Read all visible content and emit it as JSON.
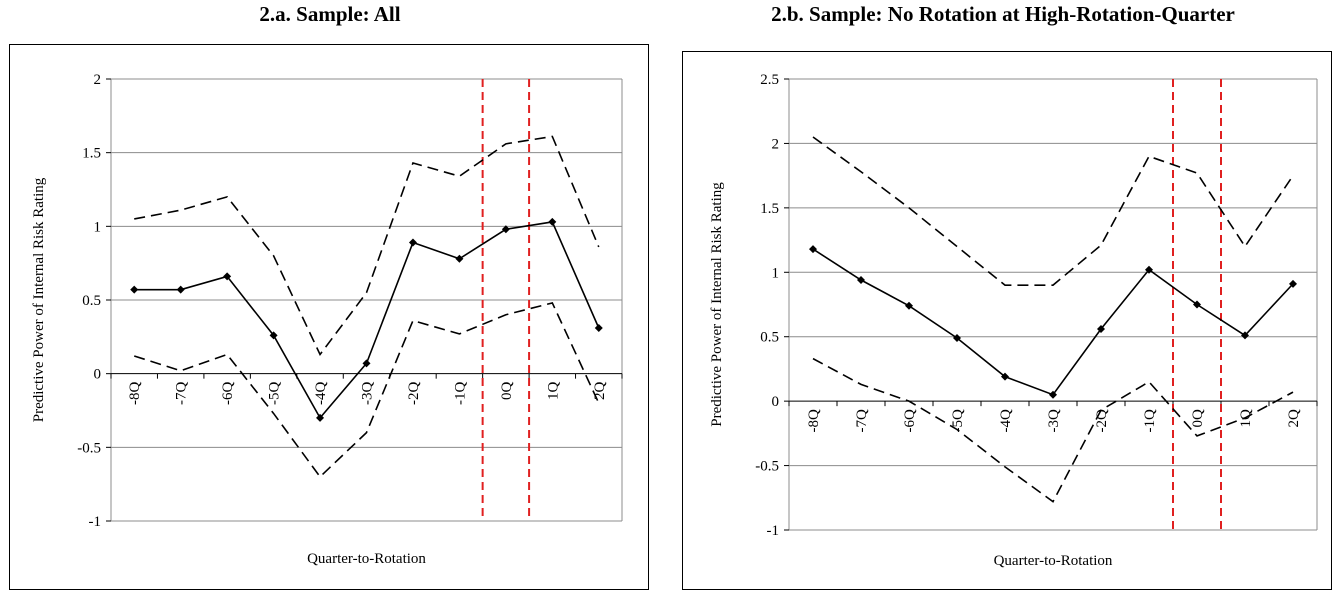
{
  "panels": [
    {
      "title": "2.a. Sample: All",
      "chart_data": {
        "type": "line",
        "categories": [
          "-8Q",
          "-7Q",
          "-6Q",
          "-5Q",
          "-4Q",
          "-3Q",
          "-2Q",
          "-1Q",
          "0Q",
          "1Q",
          "2Q"
        ],
        "series": [
          {
            "values": [
              0.57,
              0.57,
              0.66,
              0.26,
              -0.3,
              0.07,
              0.89,
              0.78,
              0.98,
              1.03,
              0.31
            ],
            "style": "solid-markers"
          },
          {
            "values": [
              1.05,
              1.11,
              1.2,
              0.8,
              0.13,
              0.55,
              1.43,
              1.34,
              1.56,
              1.61,
              0.86
            ],
            "style": "dashed"
          },
          {
            "values": [
              0.12,
              0.02,
              0.13,
              -0.27,
              -0.7,
              -0.4,
              0.36,
              0.27,
              0.4,
              0.48,
              -0.2
            ],
            "style": "dashed"
          }
        ],
        "xlabel": "Quarter-to-Rotation",
        "ylabel": "Predictive Power of Internal Risk Rating",
        "ylim": [
          -1,
          2
        ],
        "yticks": [
          "2",
          "1.5",
          "1",
          "0.5",
          "0",
          "-0.5",
          "-1"
        ],
        "ytick_values": [
          2,
          1.5,
          1,
          0.5,
          0,
          -0.5,
          -1
        ],
        "vlines_between": [
          [
            7,
            8
          ],
          [
            8,
            9
          ]
        ],
        "grid": true,
        "line_color": "#000000",
        "vline_color": "#e02020"
      }
    },
    {
      "title": "2.b. Sample: No Rotation at High-Rotation-Quarter",
      "chart_data": {
        "type": "line",
        "categories": [
          "-8Q",
          "-7Q",
          "-6Q",
          "-5Q",
          "-4Q",
          "-3Q",
          "-2Q",
          "-1Q",
          "0Q",
          "1Q",
          "2Q"
        ],
        "series": [
          {
            "values": [
              1.18,
              0.94,
              0.74,
              0.49,
              0.19,
              0.05,
              0.56,
              1.02,
              0.75,
              0.51,
              0.91
            ],
            "style": "solid-markers"
          },
          {
            "values": [
              2.05,
              1.78,
              1.5,
              1.2,
              0.9,
              0.9,
              1.21,
              1.9,
              1.77,
              1.2,
              1.75
            ],
            "style": "dashed"
          },
          {
            "values": [
              0.33,
              0.13,
              0.0,
              -0.22,
              -0.51,
              -0.78,
              -0.07,
              0.15,
              -0.27,
              -0.13,
              0.07
            ],
            "style": "dashed"
          }
        ],
        "xlabel": "Quarter-to-Rotation",
        "ylabel": "Predictive Power of Internal Risk Rating",
        "ylim": [
          -1,
          2.5
        ],
        "yticks": [
          "2.5",
          "2",
          "1.5",
          "1",
          "0.5",
          "0",
          "-0.5",
          "-1"
        ],
        "ytick_values": [
          2.5,
          2,
          1.5,
          1,
          0.5,
          0,
          -0.5,
          -1
        ],
        "vlines_between": [
          [
            7,
            8
          ],
          [
            8,
            9
          ]
        ],
        "grid": true,
        "line_color": "#000000",
        "vline_color": "#e02020"
      }
    }
  ]
}
